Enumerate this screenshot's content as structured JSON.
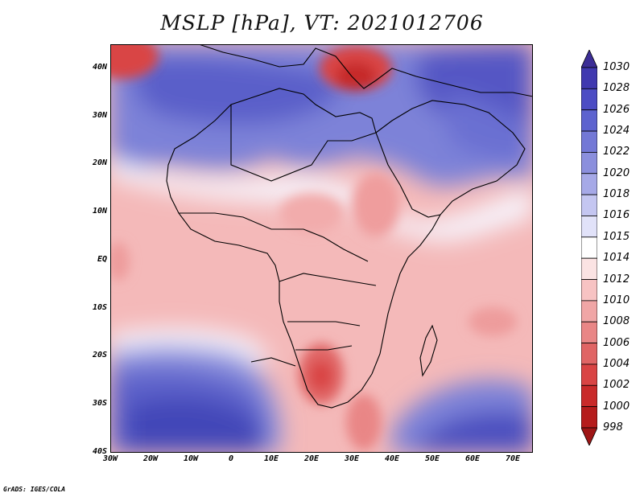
{
  "title": "MSLP [hPa], VT: 2021012706",
  "credit": "GrADS: IGES/COLA",
  "map": {
    "lon_range": [
      -30,
      75
    ],
    "lat_range": [
      -40,
      45
    ],
    "lat_ticks": [
      "40N",
      "30N",
      "20N",
      "10N",
      "EQ",
      "10S",
      "20S",
      "30S",
      "40S"
    ],
    "lon_ticks": [
      "30W",
      "20W",
      "10W",
      "0",
      "10E",
      "20E",
      "30E",
      "40E",
      "50E",
      "60E",
      "70E"
    ],
    "lat_tick_values": [
      40,
      30,
      20,
      10,
      0,
      -10,
      -20,
      -30,
      -40
    ],
    "lon_tick_values": [
      -30,
      -20,
      -10,
      0,
      10,
      20,
      30,
      40,
      50,
      60,
      70
    ]
  },
  "colorbar": {
    "labels": [
      "1030",
      "1028",
      "1026",
      "1024",
      "1022",
      "1020",
      "1018",
      "1016",
      "1015",
      "1014",
      "1012",
      "1010",
      "1008",
      "1006",
      "1004",
      "1002",
      "1000",
      "998"
    ],
    "colors": [
      "#3c2e96",
      "#4039b0",
      "#4c4cc4",
      "#5d63cf",
      "#7378d6",
      "#8b8fdd",
      "#a6a9e7",
      "#c4c6f1",
      "#e1e2f9",
      "#ffffff",
      "#fbe3e3",
      "#f7c3c3",
      "#f0a6a6",
      "#e98686",
      "#e06565",
      "#d94444",
      "#c92a2a",
      "#b51c1c",
      "#9e1616"
    ]
  }
}
